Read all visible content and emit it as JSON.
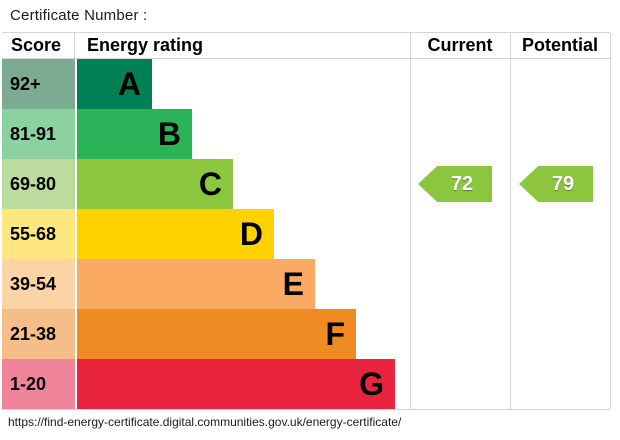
{
  "title": "Certificate Number :",
  "table": {
    "headers": {
      "score": "Score",
      "rating": "Energy rating",
      "current": "Current",
      "potential": "Potential"
    },
    "bands": [
      {
        "letter": "A",
        "score": "92+",
        "bar_color": "#008054",
        "score_color": "#7cab91"
      },
      {
        "letter": "B",
        "score": "81-91",
        "bar_color": "#2ab359",
        "score_color": "#8cd2a0"
      },
      {
        "letter": "C",
        "score": "69-80",
        "bar_color": "#8dc63f",
        "score_color": "#bcdb9f"
      },
      {
        "letter": "D",
        "score": "55-68",
        "bar_color": "#fed300",
        "score_color": "#ffe77f"
      },
      {
        "letter": "E",
        "score": "39-54",
        "bar_color": "#fbaa64",
        "score_color": "#fdd4a5"
      },
      {
        "letter": "F",
        "score": "21-38",
        "bar_color": "#ef8b23",
        "score_color": "#f5bd88"
      },
      {
        "letter": "G",
        "score": "1-20",
        "bar_color": "#e8243f",
        "score_color": "#f0859a"
      }
    ],
    "current": {
      "value": "72",
      "band": "C"
    },
    "potential": {
      "value": "79",
      "band": "C"
    },
    "arrow_color": "#8cc63f"
  },
  "footer": {
    "url": "https://find-energy-certificate.digital.communities.gov.uk/energy-certificate/"
  },
  "chart_data": {
    "type": "bar",
    "title": "Certificate Number :",
    "categories": [
      "A",
      "B",
      "C",
      "D",
      "E",
      "F",
      "G"
    ],
    "score_ranges": [
      "92+",
      "81-91",
      "69-80",
      "55-68",
      "39-54",
      "21-38",
      "1-20"
    ],
    "band_colors": [
      "#008054",
      "#2ab359",
      "#8dc63f",
      "#fed300",
      "#fbaa64",
      "#ef8b23",
      "#e8243f"
    ],
    "column_headers": [
      "Score",
      "Energy rating",
      "Current",
      "Potential"
    ],
    "current_rating": 72,
    "current_band": "C",
    "potential_rating": 79,
    "potential_band": "C",
    "legend_position": "none",
    "grid": false
  }
}
